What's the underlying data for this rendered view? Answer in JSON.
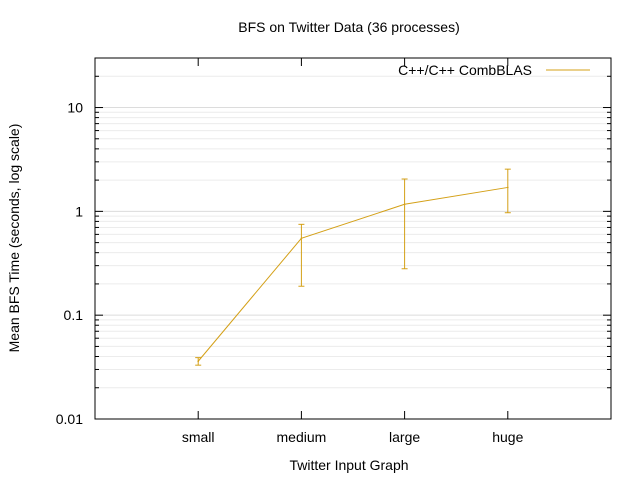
{
  "chart_data": {
    "type": "line",
    "title": "BFS on Twitter Data (36 processes)",
    "xlabel": "Twitter Input Graph",
    "ylabel": "Mean BFS Time (seconds, log scale)",
    "y_scale": "log",
    "ylim": [
      0.01,
      30
    ],
    "yticks": [
      {
        "value": 0.01,
        "label": "0.01"
      },
      {
        "value": 0.1,
        "label": "0.1"
      },
      {
        "value": 1,
        "label": "1"
      },
      {
        "value": 10,
        "label": "10"
      }
    ],
    "grid": true,
    "legend_position": "top-right",
    "categories": [
      "small",
      "medium",
      "large",
      "huge"
    ],
    "series": [
      {
        "name": "C++/C++ CombBLAS",
        "color": "#d4a017",
        "values": [
          0.036,
          0.55,
          1.17,
          1.7
        ],
        "error_low": [
          0.033,
          0.19,
          0.28,
          0.97
        ],
        "error_high": [
          0.039,
          0.75,
          2.05,
          2.55
        ]
      }
    ]
  }
}
